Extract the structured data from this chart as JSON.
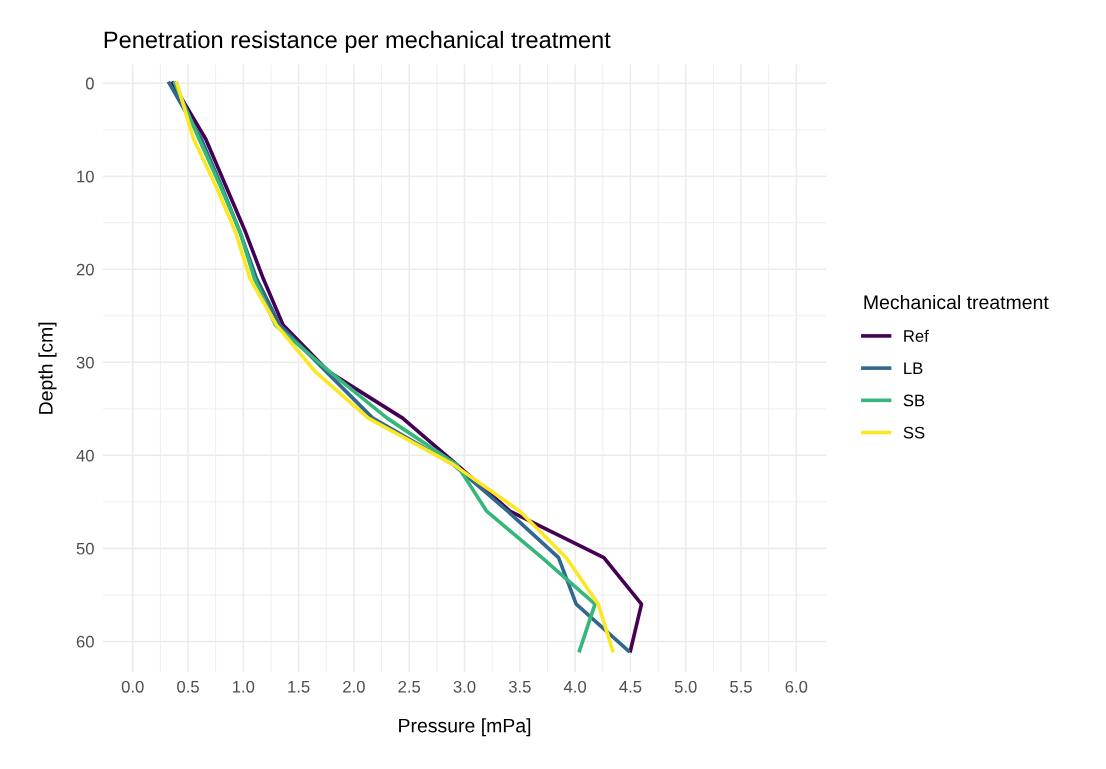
{
  "chart_data": {
    "type": "line",
    "title": "Penetration resistance per mechanical treatment",
    "xlabel": "Pressure [mPa]",
    "ylabel": "Depth [cm]",
    "legend_title": "Mechanical treatment",
    "series": [
      {
        "name": "Ref",
        "color": "#440154",
        "x": [
          0.36,
          0.66,
          0.84,
          1.02,
          1.18,
          1.36,
          1.77,
          2.44,
          2.93,
          3.41,
          4.26,
          4.6,
          4.5
        ],
        "values": [
          0,
          6,
          11,
          16,
          21,
          26,
          31,
          36,
          41,
          46,
          51,
          56,
          61
        ]
      },
      {
        "name": "LB",
        "color": "#31688e",
        "x": [
          0.33,
          0.62,
          0.8,
          0.97,
          1.12,
          1.33,
          1.75,
          2.17,
          2.9,
          3.39,
          3.85,
          4.01,
          4.48
        ],
        "values": [
          0,
          6,
          11,
          16,
          21,
          26,
          31,
          36,
          41,
          46,
          51,
          56,
          61
        ]
      },
      {
        "name": "SB",
        "color": "#35b779",
        "x": [
          0.38,
          0.6,
          0.79,
          0.97,
          1.1,
          1.29,
          1.78,
          2.3,
          2.93,
          3.2,
          3.7,
          4.18,
          4.04
        ],
        "values": [
          0,
          6,
          11,
          16,
          21,
          26,
          31,
          36,
          41,
          46,
          51,
          56,
          61
        ]
      },
      {
        "name": "SS",
        "color": "#fde725",
        "x": [
          0.4,
          0.55,
          0.75,
          0.93,
          1.06,
          1.3,
          1.65,
          2.13,
          2.9,
          3.5,
          3.92,
          4.21,
          4.34
        ],
        "values": [
          0,
          6,
          11,
          16,
          21,
          26,
          31,
          36,
          41,
          46,
          51,
          56,
          61
        ]
      }
    ],
    "xlim": [
      -0.27,
      6.27
    ],
    "ylim": [
      63.3,
      -2
    ],
    "xticks": [
      {
        "value": 0,
        "label": "0.0"
      },
      {
        "value": 0.5,
        "label": "0.5"
      },
      {
        "value": 1,
        "label": "1.0"
      },
      {
        "value": 1.5,
        "label": "1.5"
      },
      {
        "value": 2,
        "label": "2.0"
      },
      {
        "value": 2.5,
        "label": "2.5"
      },
      {
        "value": 3,
        "label": "3.0"
      },
      {
        "value": 3.5,
        "label": "3.5"
      },
      {
        "value": 4,
        "label": "4.0"
      },
      {
        "value": 4.5,
        "label": "4.5"
      },
      {
        "value": 5,
        "label": "5.0"
      },
      {
        "value": 5.5,
        "label": "5.5"
      },
      {
        "value": 6,
        "label": "6.0"
      }
    ],
    "yticks": [
      0,
      10,
      20,
      30,
      40,
      50,
      60
    ],
    "grid": true,
    "legend": "right",
    "line_style": "solid",
    "marker": "none"
  }
}
